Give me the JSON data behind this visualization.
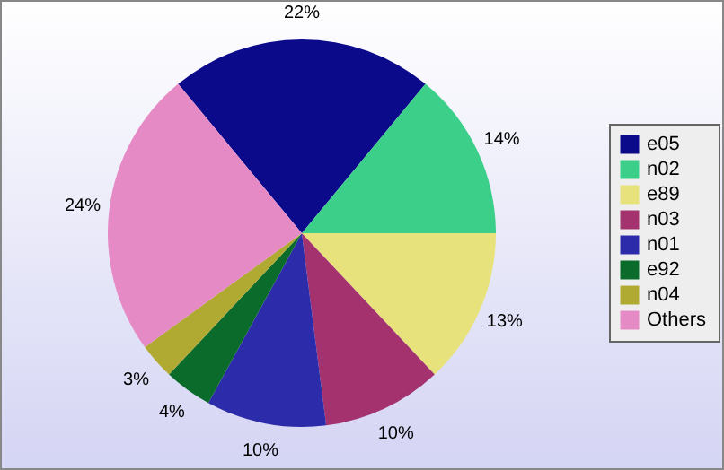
{
  "chart_data": {
    "type": "pie",
    "categories": [
      "e05",
      "n02",
      "e89",
      "n03",
      "n01",
      "e92",
      "n04",
      "Others"
    ],
    "values": [
      22,
      14,
      13,
      10,
      10,
      4,
      3,
      24
    ],
    "value_labels": [
      "22%",
      "14%",
      "13%",
      "10%",
      "10%",
      "4%",
      "3%",
      "24%"
    ],
    "colors": [
      "#0a0a8a",
      "#3ccf8a",
      "#e8e27c",
      "#a3326f",
      "#2c2caa",
      "#0b6b2b",
      "#b0aa32",
      "#e68ac6"
    ],
    "legend": "right"
  }
}
